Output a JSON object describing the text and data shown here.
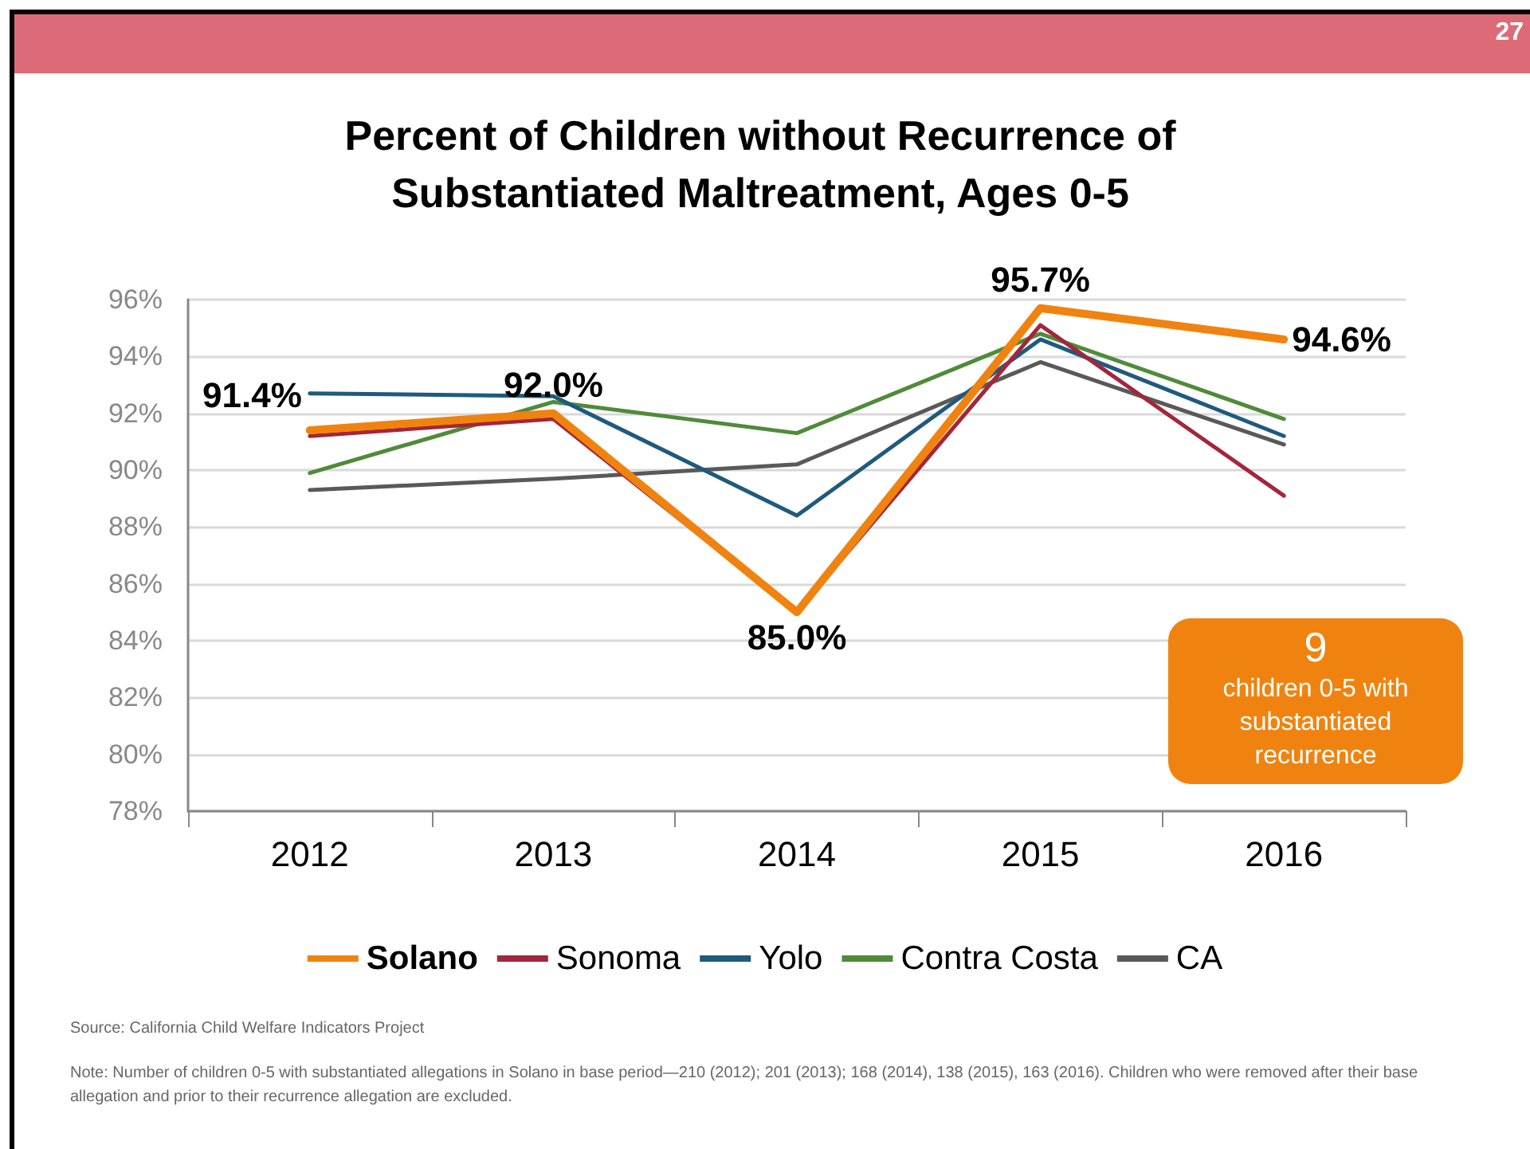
{
  "chart_data": {
    "type": "line",
    "title": "Percent of Children without Recurrence of\nSubstantiated Maltreatment, Ages 0-5",
    "categories": [
      "2012",
      "2013",
      "2014",
      "2015",
      "2016"
    ],
    "series": [
      {
        "name": "Solano",
        "color": "#f0830f",
        "values": [
          91.4,
          92.0,
          85.0,
          95.7,
          94.6
        ],
        "value_labels": [
          "91.4%",
          "92.0%",
          "85.0%",
          "95.7%",
          "94.6%"
        ]
      },
      {
        "name": "Sonoma",
        "color": "#a3263a",
        "values": [
          91.2,
          91.8,
          85.0,
          95.1,
          89.1
        ]
      },
      {
        "name": "Yolo",
        "color": "#1f5a7e",
        "values": [
          92.7,
          92.6,
          88.4,
          94.6,
          91.2
        ]
      },
      {
        "name": "Contra Costa",
        "color": "#4f8b3a",
        "values": [
          89.9,
          92.4,
          91.3,
          94.8,
          91.8
        ]
      },
      {
        "name": "CA",
        "color": "#595959",
        "values": [
          89.3,
          89.7,
          90.2,
          93.8,
          90.9
        ]
      }
    ],
    "ylim": [
      78,
      96
    ],
    "yticks": [
      {
        "value": 78,
        "label": "78%"
      },
      {
        "value": 80,
        "label": "80%"
      },
      {
        "value": 82,
        "label": "82%"
      },
      {
        "value": 84,
        "label": "84%"
      },
      {
        "value": 86,
        "label": "86%"
      },
      {
        "value": 88,
        "label": "88%"
      },
      {
        "value": 90,
        "label": "90%"
      },
      {
        "value": 92,
        "label": "92%"
      },
      {
        "value": 94,
        "label": "94%"
      },
      {
        "value": 96,
        "label": "96%"
      }
    ],
    "grid": "y",
    "legend": "bottom",
    "marker": "none",
    "line_style": "solid",
    "annotations": [
      "27",
      "9\nchildren 0-5 with\nsubstantiated\nrecurrence",
      "Source: California Child Welfare Indicators Project",
      "Note: Number of children 0-5 with substantiated allegations in Solano in base period—210 (2012); 201 (2013); 168 (2014), 138 (2015), 163 (2016). Children who were removed after their base allegation and prior to their recurrence allegation are excluded."
    ]
  }
}
